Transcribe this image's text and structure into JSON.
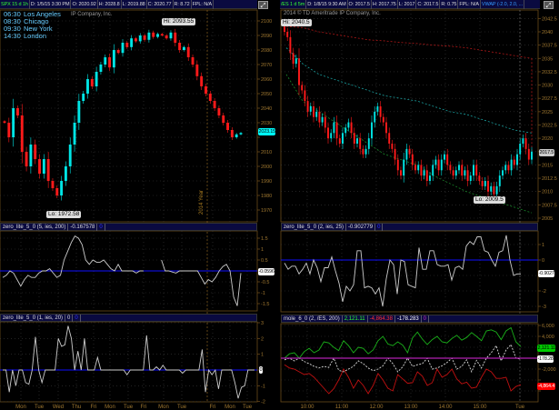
{
  "left": {
    "header": {
      "symbol": "SPX 15 d 1h",
      "date": "D: 1/5/15 3:30 PM",
      "open": "O: 2020.92",
      "high": "H: 2028.8",
      "low": "L: 2019.88",
      "close": "C: 2020.77",
      "range": "R: 8.72",
      "fpl": "FPL: N/A"
    },
    "clocks": [
      {
        "time": "06:30",
        "city": "Los Angeles"
      },
      {
        "time": "08:30",
        "city": "Chicago"
      },
      {
        "time": "09:30",
        "city": "New York"
      },
      {
        "time": "14:30",
        "city": "London"
      }
    ],
    "copyright": "IP Company, Inc.",
    "hi_label": "Hi: 2093.55",
    "lo_label": "Lo: 1972.58",
    "last_price": "2023.15",
    "year_marker": "2014 Year",
    "price_ticks": [
      "2100",
      "2090",
      "2080",
      "2070",
      "2060",
      "2050",
      "2040",
      "2030",
      "2020",
      "2010",
      "2000",
      "1990",
      "1980",
      "1970"
    ],
    "closes": [
      2030,
      2020,
      2040,
      2035,
      2010,
      2000,
      2015,
      2005,
      1995,
      2005,
      1990,
      1985,
      1980,
      1990,
      2000,
      2015,
      2030,
      2045,
      2050,
      2060,
      2055,
      2065,
      2070,
      2075,
      2068,
      2080,
      2078,
      2085,
      2082,
      2088,
      2086,
      2090,
      2087,
      2092,
      2089,
      2091,
      2090,
      2088,
      2092,
      2085,
      2080,
      2082,
      2075,
      2070,
      2062,
      2055,
      2050,
      2045,
      2040,
      2035,
      2030,
      2025,
      2020,
      2022,
      2023
    ],
    "ind1": {
      "title": "zero_lite_5_0 (5, ies, 200)",
      "value": "-0.167578",
      "zero": "0",
      "last": "-0.0596",
      "ticks": [
        "1.5",
        "1",
        "0.5",
        "0",
        "-0.5",
        "-1",
        "-1.5"
      ],
      "values": [
        -0.3,
        -0.2,
        0,
        -0.1,
        -0.4,
        -0.7,
        -0.4,
        -0.2,
        -0.3,
        -0.3,
        -0.1,
        0,
        0,
        0.1,
        -0.1,
        -0.3,
        -0.2,
        0.5,
        0.9,
        1.3,
        1.6,
        1.5,
        1.2,
        0.5,
        0.3,
        0.5,
        0.4,
        0.4,
        0.5,
        0.3,
        0.1,
        0,
        0.3,
        0,
        0,
        0,
        0,
        -0.1,
        0,
        0,
        null,
        null,
        null,
        null,
        0.5,
        0,
        0,
        -0.05,
        -0.1,
        0,
        0,
        0,
        0,
        0,
        0,
        -0.3,
        -0.6,
        -0.4,
        -0.5,
        -0.3,
        0,
        0.2,
        0.3,
        0,
        -1.2,
        -1.6,
        -0.1
      ]
    },
    "ind2": {
      "title": "zero_lite_5_0 (1, ies, 20)",
      "value": "0",
      "zero": "0",
      "last": "0",
      "ticks": [
        "3",
        "2",
        "1",
        "0",
        "-1",
        "-2"
      ],
      "values": [
        0,
        0,
        -1.4,
        0,
        -1,
        0,
        0,
        -0.8,
        -0.9,
        0,
        2.1,
        0,
        -0.8,
        0,
        0,
        0,
        0,
        2,
        1.5,
        1.6,
        2.8,
        2,
        0,
        1.2,
        0,
        2,
        0,
        0,
        0,
        0.8,
        0,
        0,
        0,
        0,
        0,
        0,
        0,
        0,
        -0.3,
        0,
        0,
        0,
        0,
        0,
        2.2,
        0,
        0,
        0.2,
        0,
        0.3,
        0,
        0,
        0,
        0,
        0,
        -0.2,
        0,
        0,
        0,
        0,
        0,
        1.3,
        -1.4,
        0,
        -0.3,
        0,
        -1.2,
        0,
        0,
        0,
        0,
        -0.8,
        -1.8,
        -1.1,
        -1,
        0,
        0,
        0
      ]
    },
    "time_labels": [
      "Mon",
      "Tue",
      "Wed",
      "Thu",
      "Fri",
      "Mon",
      "Tue",
      "Fri",
      "Mon",
      "Tue",
      "Fri",
      "Mon",
      "Tue"
    ]
  },
  "right": {
    "header": {
      "symbol": "/ES 1 d 5m",
      "date": "D: 1/8/15 9:30 AM",
      "open": "O: 2017.5",
      "high": "H: 2017.75",
      "low": "L: 2017",
      "close": "C: 2017.5",
      "range": "R: 0.75",
      "fpl": "FPL: N/A",
      "vwap": "VWAP (-2.0, 2.0, ..."
    },
    "copyright": "2014 © TD Ameritrade IP Company, Inc.",
    "hi_label": "Hi: 2040.5",
    "lo_label": "Lo: 2009.5",
    "last_price": "2017.5",
    "price_ticks": [
      "2042.5",
      "2040",
      "2037.5",
      "2035",
      "2032.5",
      "2030",
      "2027.5",
      "2025",
      "2022.5",
      "2020",
      "2017.5",
      "2015",
      "2012.5",
      "2010",
      "2007.5",
      "2005"
    ],
    "closes": [
      2040,
      2039,
      2036,
      2034,
      2035,
      2030,
      2029,
      2027,
      2025,
      2026,
      2024,
      2025,
      2023,
      2024,
      2022,
      2020,
      2021,
      2023,
      2020,
      2019,
      2021,
      2022,
      2023,
      2021,
      2019,
      2020,
      2018,
      2017,
      2018,
      2020,
      2023,
      2025,
      2026,
      2024,
      2023,
      2021,
      2019,
      2018,
      2016,
      2014,
      2013,
      2016,
      2018,
      2017,
      2015,
      2014,
      2015,
      2013,
      2014,
      2012,
      2013,
      2015,
      2016,
      2014,
      2016,
      2017,
      2015,
      2014,
      2013,
      2014,
      2015,
      2013,
      2014,
      2012,
      2013,
      2015,
      2013,
      2012,
      2011,
      2012,
      2010,
      2011,
      2009.5,
      2011,
      2013,
      2014,
      2015,
      2014,
      2016,
      2015,
      2017,
      2019,
      2020,
      2018,
      2016,
      2017.5
    ],
    "bands": {
      "upper": [
        2041,
        2040.8,
        2040,
        2039.5,
        2039,
        2038.5,
        2038.3,
        2038,
        2037.8,
        2037.5,
        2037.3,
        2037,
        2036.5,
        2036,
        2035.5,
        2035
      ],
      "middle": [
        2037,
        2034,
        2032,
        2031,
        2030,
        2029,
        2028,
        2027.5,
        2027,
        2026,
        2025,
        2024.5,
        2023.5,
        2022.5,
        2021.5,
        2021
      ],
      "lower": [
        2032,
        2027,
        2025,
        2023,
        2021,
        2019,
        2017,
        2016,
        2015,
        2013,
        2011.5,
        2010,
        2009,
        2008,
        2007,
        2006
      ]
    },
    "ind1": {
      "title": "zero_lite_5_0 (2, ies, 25)",
      "value": "-0.902779",
      "zero": "0",
      "last": "-0.9027",
      "ticks": [
        "1",
        "0",
        "-1",
        "-2",
        "-3"
      ],
      "values": [
        -0.2,
        -0.6,
        -0.4,
        -0.4,
        -0.9,
        -0.6,
        -0.2,
        -0.9,
        0,
        -0.5,
        -1.4,
        -0.5,
        -0.5,
        0.2,
        -0.7,
        -1.5,
        -2.7,
        -1.7,
        -2,
        -1.6,
        0.6,
        0.6,
        -1.8,
        -1.7,
        -1.8,
        -2.2,
        -1.8,
        -3,
        -1.2,
        0,
        -0.3,
        -2.2,
        0,
        -0.1,
        -1.6,
        -1.7,
        -1.8,
        0.8,
        -0.6,
        -0.6,
        0.6,
        0.6,
        -0.3,
        -0.4,
        -0.4,
        -0.3,
        -1.3,
        -0.5,
        -0.4,
        -0.6,
        0.9,
        1.2,
        1.0,
        1.5,
        1.5,
        0.6,
        0.5,
        0,
        -0.4,
        0.5,
        0.6,
        1.6,
        0,
        -1,
        -0.9,
        -0.9
      ]
    },
    "mole": {
      "title": "mole_6_0 (2, /ES, 200)",
      "v1": "2,121.11",
      "v2": "-4,864.38",
      "v3": "-178.283",
      "v4": "0",
      "last_green": "2,121.11",
      "last_white": "-178.28",
      "last_red": "-4,864.4",
      "ticks": [
        "6,000",
        "4,000",
        "2,000",
        "0",
        "-2,000",
        "-4,000",
        "-6,000"
      ],
      "green": [
        0,
        800,
        1000,
        0,
        1200,
        1800,
        1000,
        1500,
        3000,
        2800,
        2000,
        1400,
        3200,
        2300,
        1000,
        2000,
        1800,
        800,
        1500,
        3200,
        4000,
        2600,
        2300,
        3000,
        2400,
        1000,
        3700,
        4800,
        3500,
        2500,
        3400,
        4000,
        3000,
        2800,
        3600,
        4200,
        3300,
        3800,
        4700,
        4000,
        3200,
        5000,
        5200,
        4800,
        3400,
        5000,
        5600,
        3000,
        2121
      ],
      "white": [
        -300,
        0,
        -500,
        0,
        -600,
        -1000,
        -1500,
        -1800,
        -1500,
        -1700,
        0,
        -2200,
        -2500,
        -2000,
        -1500,
        -500,
        -1000,
        -1800,
        -2300,
        -2000,
        -1400,
        0,
        -1000,
        -2500,
        -1600,
        0,
        -1500,
        -1200,
        -1000,
        0,
        -2000,
        -1800,
        -1400,
        -800,
        0,
        -2000,
        -1500,
        -300,
        -2500,
        -400,
        -1800,
        0,
        1000,
        2300,
        -500,
        1500,
        2500,
        0,
        -178
      ],
      "red": [
        -1200,
        -1800,
        -2000,
        -2500,
        -3000,
        -2800,
        -3500,
        -4500,
        -5500,
        -6500,
        -5600,
        -4000,
        -2000,
        -3500,
        -5500,
        -4000,
        -5000,
        -6500,
        -5000,
        -2800,
        -4000,
        -5500,
        -6000,
        -3000,
        -3800,
        -4600,
        -4500,
        -2500,
        -3300,
        -5000,
        -4500,
        -2000,
        -3500,
        -3000,
        -2000,
        -3800,
        -4700,
        -4400,
        -5500,
        -5300,
        -3500,
        -2000,
        -2500,
        -3700,
        -3700,
        -3500,
        -6000,
        -5200,
        -4864
      ]
    },
    "time_labels": [
      "10:00",
      "11:00",
      "12:00",
      "13:00",
      "14:00",
      "15:00",
      "Tue"
    ]
  },
  "colors": {
    "up": "#00e5e5",
    "down": "#ff1a1a",
    "grid": "#3a3a3a",
    "axis": "#6b4a1a",
    "zero": "#1010ff",
    "header_bg": "#0a0a40"
  }
}
